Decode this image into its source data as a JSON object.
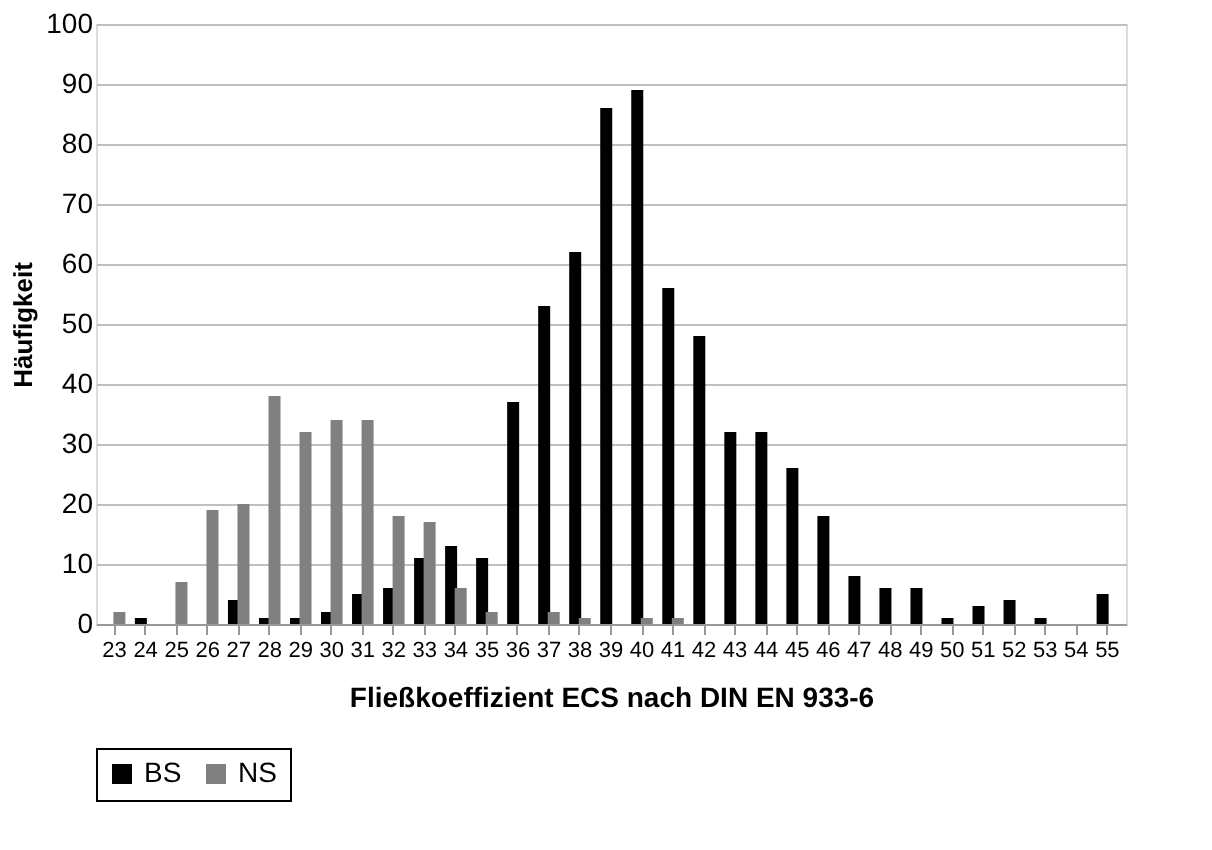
{
  "chart_data": {
    "type": "bar",
    "categories": [
      "23",
      "24",
      "25",
      "26",
      "27",
      "28",
      "29",
      "30",
      "31",
      "32",
      "33",
      "34",
      "35",
      "36",
      "37",
      "38",
      "39",
      "40",
      "41",
      "42",
      "43",
      "44",
      "45",
      "46",
      "47",
      "48",
      "49",
      "50",
      "51",
      "52",
      "53",
      "54",
      "55"
    ],
    "series": [
      {
        "name": "BS",
        "color": "#000000",
        "values": [
          0,
          1,
          0,
          0,
          4,
          1,
          1,
          2,
          5,
          6,
          11,
          13,
          11,
          37,
          53,
          62,
          86,
          89,
          56,
          48,
          32,
          32,
          26,
          18,
          8,
          6,
          6,
          1,
          3,
          4,
          1,
          0,
          5
        ]
      },
      {
        "name": "NS",
        "color": "#808080",
        "values": [
          2,
          0,
          7,
          19,
          20,
          38,
          32,
          34,
          34,
          18,
          17,
          6,
          2,
          0,
          2,
          1,
          0,
          1,
          1,
          0,
          0,
          0,
          0,
          0,
          0,
          0,
          0,
          0,
          0,
          0,
          0,
          0,
          0
        ]
      }
    ],
    "xlabel": "Fließkoeffizient ECS nach DIN EN 933-6",
    "ylabel": "Häufigkeit",
    "ylim": [
      0,
      100
    ],
    "yticks": [
      0,
      10,
      20,
      30,
      40,
      50,
      60,
      70,
      80,
      90,
      100
    ],
    "grid": "y",
    "legend": "bottom"
  }
}
